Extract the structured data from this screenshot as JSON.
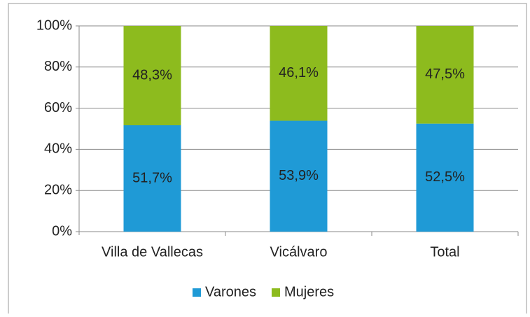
{
  "chart_data": {
    "type": "stacked_bar",
    "categories": [
      "Villa de Vallecas",
      "Vicálvaro",
      "Total"
    ],
    "series": [
      {
        "name": "Varones",
        "color": "#1f9ad6",
        "values": [
          51.7,
          53.9,
          52.5
        ],
        "value_labels": [
          "51,7%",
          "53,9%",
          "52,5%"
        ]
      },
      {
        "name": "Mujeres",
        "color": "#8dbb1e",
        "values": [
          48.3,
          46.1,
          47.5
        ],
        "value_labels": [
          "48,3%",
          "46,1%",
          "47,5%"
        ]
      }
    ],
    "ylim": [
      0,
      100
    ],
    "yticks": [
      {
        "value": 0,
        "label": "0%"
      },
      {
        "value": 20,
        "label": "20%"
      },
      {
        "value": 40,
        "label": "40%"
      },
      {
        "value": 60,
        "label": "60%"
      },
      {
        "value": 80,
        "label": "80%"
      },
      {
        "value": 100,
        "label": "100%"
      }
    ],
    "grid": true,
    "legend": "bottom"
  }
}
